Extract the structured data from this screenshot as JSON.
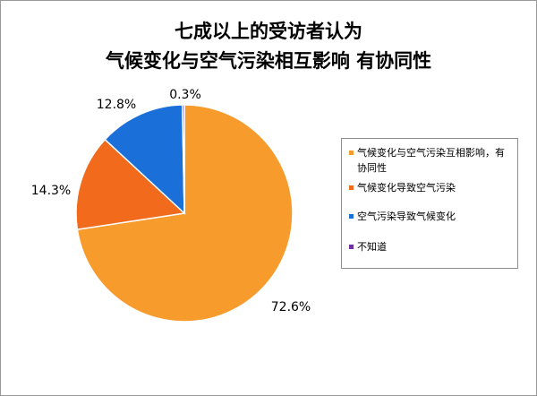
{
  "chart_data": {
    "type": "pie",
    "title_lines": [
      "七成以上的受访者认为",
      "气候变化与空气污染相互影响  有协同性"
    ],
    "slices": [
      {
        "label": "气候变化与空气污染互相影响，有协同性",
        "value": 72.6,
        "value_label": "72.6%",
        "color": "#F79B2D"
      },
      {
        "label": "气候变化导致空气污染",
        "value": 14.3,
        "value_label": "14.3%",
        "color": "#F26B1D"
      },
      {
        "label": "空气污染导致气候变化",
        "value": 12.8,
        "value_label": "12.8%",
        "color": "#1B6FD8"
      },
      {
        "label": "不知道",
        "value": 0.3,
        "value_label": "0.3%",
        "color": "#7030A0"
      }
    ],
    "legend_position": "right",
    "start_angle_deg": 0,
    "direction": "clockwise"
  }
}
